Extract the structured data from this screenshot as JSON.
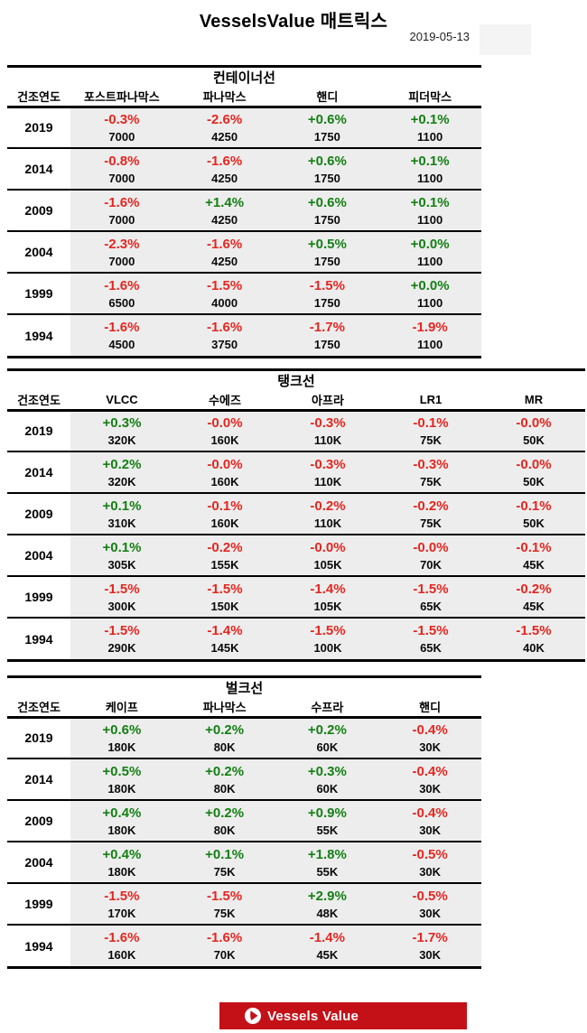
{
  "page": {
    "title": "VesselsValue 매트릭스",
    "date": "2019-05-13"
  },
  "colors": {
    "positive": "#148014",
    "negative": "#e52620",
    "row_bg": "#ededed",
    "banner_red": "#c41118",
    "border_black": "#000000"
  },
  "year_header": "건조연도",
  "tables": [
    {
      "title": "컨테이너선",
      "columns": [
        "포스트파나막스",
        "파나막스",
        "핸디",
        "피더막스"
      ],
      "rows": [
        {
          "year": "2019",
          "cells": [
            {
              "pct": "-0.3%",
              "value": "7000"
            },
            {
              "pct": "-2.6%",
              "value": "4250"
            },
            {
              "pct": "+0.6%",
              "value": "1750"
            },
            {
              "pct": "+0.1%",
              "value": "1100"
            }
          ]
        },
        {
          "year": "2014",
          "cells": [
            {
              "pct": "-0.8%",
              "value": "7000"
            },
            {
              "pct": "-1.6%",
              "value": "4250"
            },
            {
              "pct": "+0.6%",
              "value": "1750"
            },
            {
              "pct": "+0.1%",
              "value": "1100"
            }
          ]
        },
        {
          "year": "2009",
          "cells": [
            {
              "pct": "-1.6%",
              "value": "7000"
            },
            {
              "pct": "+1.4%",
              "value": "4250"
            },
            {
              "pct": "+0.6%",
              "value": "1750"
            },
            {
              "pct": "+0.1%",
              "value": "1100"
            }
          ]
        },
        {
          "year": "2004",
          "cells": [
            {
              "pct": "-2.3%",
              "value": "7000"
            },
            {
              "pct": "-1.6%",
              "value": "4250"
            },
            {
              "pct": "+0.5%",
              "value": "1750"
            },
            {
              "pct": "+0.0%",
              "value": "1100"
            }
          ]
        },
        {
          "year": "1999",
          "cells": [
            {
              "pct": "-1.6%",
              "value": "6500"
            },
            {
              "pct": "-1.5%",
              "value": "4000"
            },
            {
              "pct": "-1.5%",
              "value": "1750"
            },
            {
              "pct": "+0.0%",
              "value": "1100"
            }
          ]
        },
        {
          "year": "1994",
          "cells": [
            {
              "pct": "-1.6%",
              "value": "4500"
            },
            {
              "pct": "-1.6%",
              "value": "3750"
            },
            {
              "pct": "-1.7%",
              "value": "1750"
            },
            {
              "pct": "-1.9%",
              "value": "1100"
            }
          ]
        }
      ]
    },
    {
      "title": "탱크선",
      "columns": [
        "VLCC",
        "수에즈",
        "아프라",
        "LR1",
        "MR"
      ],
      "rows": [
        {
          "year": "2019",
          "cells": [
            {
              "pct": "+0.3%",
              "value": "320K"
            },
            {
              "pct": "-0.0%",
              "value": "160K"
            },
            {
              "pct": "-0.3%",
              "value": "110K"
            },
            {
              "pct": "-0.1%",
              "value": "75K"
            },
            {
              "pct": "-0.0%",
              "value": "50K"
            }
          ]
        },
        {
          "year": "2014",
          "cells": [
            {
              "pct": "+0.2%",
              "value": "320K"
            },
            {
              "pct": "-0.0%",
              "value": "160K"
            },
            {
              "pct": "-0.3%",
              "value": "110K"
            },
            {
              "pct": "-0.3%",
              "value": "75K"
            },
            {
              "pct": "-0.0%",
              "value": "50K"
            }
          ]
        },
        {
          "year": "2009",
          "cells": [
            {
              "pct": "+0.1%",
              "value": "310K"
            },
            {
              "pct": "-0.1%",
              "value": "160K"
            },
            {
              "pct": "-0.2%",
              "value": "110K"
            },
            {
              "pct": "-0.2%",
              "value": "75K"
            },
            {
              "pct": "-0.1%",
              "value": "50K"
            }
          ]
        },
        {
          "year": "2004",
          "cells": [
            {
              "pct": "+0.1%",
              "value": "305K"
            },
            {
              "pct": "-0.2%",
              "value": "155K"
            },
            {
              "pct": "-0.0%",
              "value": "105K"
            },
            {
              "pct": "-0.0%",
              "value": "70K"
            },
            {
              "pct": "-0.1%",
              "value": "45K"
            }
          ]
        },
        {
          "year": "1999",
          "cells": [
            {
              "pct": "-1.5%",
              "value": "300K"
            },
            {
              "pct": "-1.5%",
              "value": "150K"
            },
            {
              "pct": "-1.4%",
              "value": "105K"
            },
            {
              "pct": "-1.5%",
              "value": "65K"
            },
            {
              "pct": "-0.2%",
              "value": "45K"
            }
          ]
        },
        {
          "year": "1994",
          "cells": [
            {
              "pct": "-1.5%",
              "value": "290K"
            },
            {
              "pct": "-1.4%",
              "value": "145K"
            },
            {
              "pct": "-1.5%",
              "value": "100K"
            },
            {
              "pct": "-1.5%",
              "value": "65K"
            },
            {
              "pct": "-1.5%",
              "value": "40K"
            }
          ]
        }
      ]
    },
    {
      "title": "벌크선",
      "columns": [
        "케이프",
        "파나막스",
        "수프라",
        "핸디"
      ],
      "rows": [
        {
          "year": "2019",
          "cells": [
            {
              "pct": "+0.6%",
              "value": "180K"
            },
            {
              "pct": "+0.2%",
              "value": "80K"
            },
            {
              "pct": "+0.2%",
              "value": "60K"
            },
            {
              "pct": "-0.4%",
              "value": "30K"
            }
          ]
        },
        {
          "year": "2014",
          "cells": [
            {
              "pct": "+0.5%",
              "value": "180K"
            },
            {
              "pct": "+0.2%",
              "value": "80K"
            },
            {
              "pct": "+0.3%",
              "value": "60K"
            },
            {
              "pct": "-0.4%",
              "value": "30K"
            }
          ]
        },
        {
          "year": "2009",
          "cells": [
            {
              "pct": "+0.4%",
              "value": "180K"
            },
            {
              "pct": "+0.2%",
              "value": "80K"
            },
            {
              "pct": "+0.9%",
              "value": "55K"
            },
            {
              "pct": "-0.4%",
              "value": "30K"
            }
          ]
        },
        {
          "year": "2004",
          "cells": [
            {
              "pct": "+0.4%",
              "value": "180K"
            },
            {
              "pct": "+0.1%",
              "value": "75K"
            },
            {
              "pct": "+1.8%",
              "value": "55K"
            },
            {
              "pct": "-0.5%",
              "value": "30K"
            }
          ]
        },
        {
          "year": "1999",
          "cells": [
            {
              "pct": "-1.5%",
              "value": "170K"
            },
            {
              "pct": "-1.5%",
              "value": "75K"
            },
            {
              "pct": "+2.9%",
              "value": "48K"
            },
            {
              "pct": "-0.5%",
              "value": "30K"
            }
          ]
        },
        {
          "year": "1994",
          "cells": [
            {
              "pct": "-1.6%",
              "value": "160K"
            },
            {
              "pct": "-1.6%",
              "value": "70K"
            },
            {
              "pct": "-1.4%",
              "value": "45K"
            },
            {
              "pct": "-1.7%",
              "value": "30K"
            }
          ]
        }
      ]
    }
  ],
  "footer": {
    "logo_text": "Vessels Value",
    "logo_icon": "vesselsvalue-circle-logo"
  }
}
